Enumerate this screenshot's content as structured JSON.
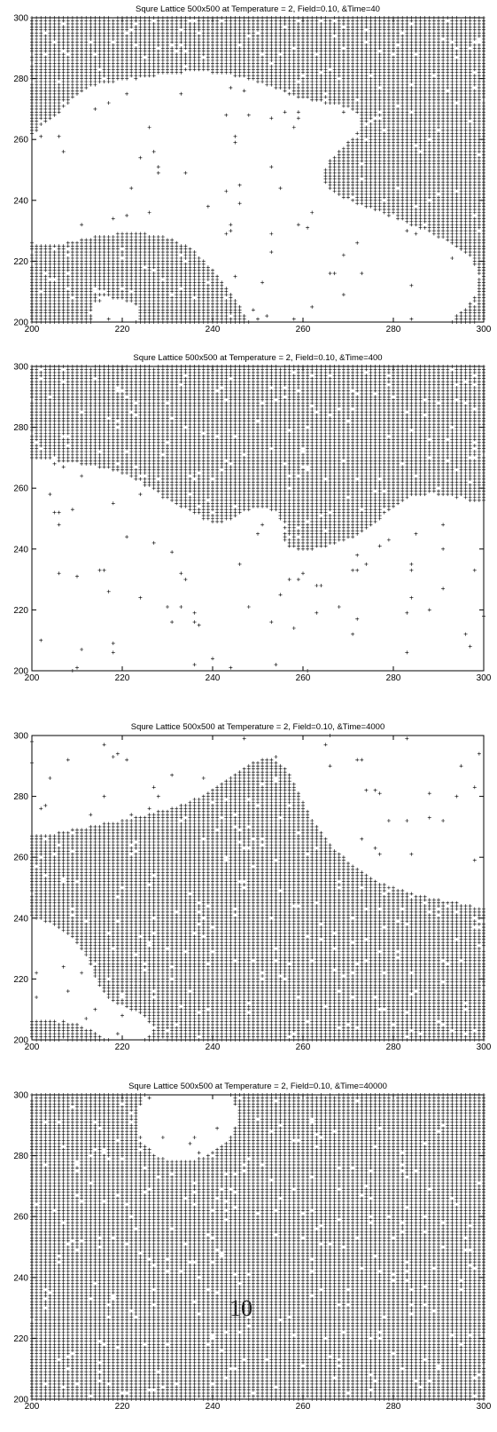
{
  "page": {
    "page_number": "10"
  },
  "chart_data": [
    {
      "type": "scatter",
      "title": "Squre Lattice 500x500 at Temperature = 2, Field=0.10, &Time=40",
      "xlabel": "",
      "ylabel": "",
      "xlim": [
        200,
        300
      ],
      "ylim": [
        200,
        300
      ],
      "x_ticks": [
        "200",
        "220",
        "240",
        "260",
        "280",
        "300"
      ],
      "y_ticks": [
        "200",
        "220",
        "240",
        "260",
        "280",
        "300"
      ],
      "marker": "+",
      "grid": false,
      "occupied_fraction_estimate": 0.5,
      "series": [
        {
          "values_description_cells": "dense '+' markers on lattice sites",
          "seed": 40
        }
      ]
    },
    {
      "type": "scatter",
      "title": "Squre Lattice 500x500 at Temperature = 2, Field=0.10, &Time=400",
      "xlabel": "",
      "ylabel": "",
      "xlim": [
        200,
        300
      ],
      "ylim": [
        200,
        300
      ],
      "x_ticks": [
        "200",
        "220",
        "240",
        "260",
        "280",
        "300"
      ],
      "y_ticks": [
        "200",
        "220",
        "240",
        "260",
        "280",
        "300"
      ],
      "marker": "+",
      "grid": false,
      "occupied_fraction_estimate": 0.45,
      "series": [
        {
          "values_description_cells": "dense '+' markers on lattice sites",
          "seed": 400
        }
      ]
    },
    {
      "type": "scatter",
      "title": "Squre Lattice 500x500 at Temperature = 2, Field=0.10, &Time=4000",
      "xlabel": "",
      "ylabel": "",
      "xlim": [
        200,
        300
      ],
      "ylim": [
        200,
        300
      ],
      "x_ticks": [
        "200",
        "220",
        "240",
        "260",
        "280",
        "300"
      ],
      "y_ticks": [
        "200",
        "220",
        "240",
        "260",
        "280",
        "300"
      ],
      "marker": "+",
      "grid": false,
      "occupied_fraction_estimate": 0.62,
      "series": [
        {
          "values_description_cells": "dense '+' markers on lattice sites",
          "seed": 4000
        }
      ]
    },
    {
      "type": "scatter",
      "title": "Squre Lattice 500x500 at Temperature = 2, Field=0.10, &Time=40000",
      "xlabel": "",
      "ylabel": "",
      "xlim": [
        200,
        300
      ],
      "ylim": [
        200,
        300
      ],
      "x_ticks": [
        "200",
        "220",
        "240",
        "260",
        "280",
        "300"
      ],
      "y_ticks": [
        "200",
        "220",
        "240",
        "260",
        "280",
        "300"
      ],
      "marker": "+",
      "grid": false,
      "occupied_fraction_estimate": 0.96,
      "series": [
        {
          "values_description_cells": "dense '+' markers on lattice sites",
          "seed": 40000
        }
      ]
    }
  ]
}
